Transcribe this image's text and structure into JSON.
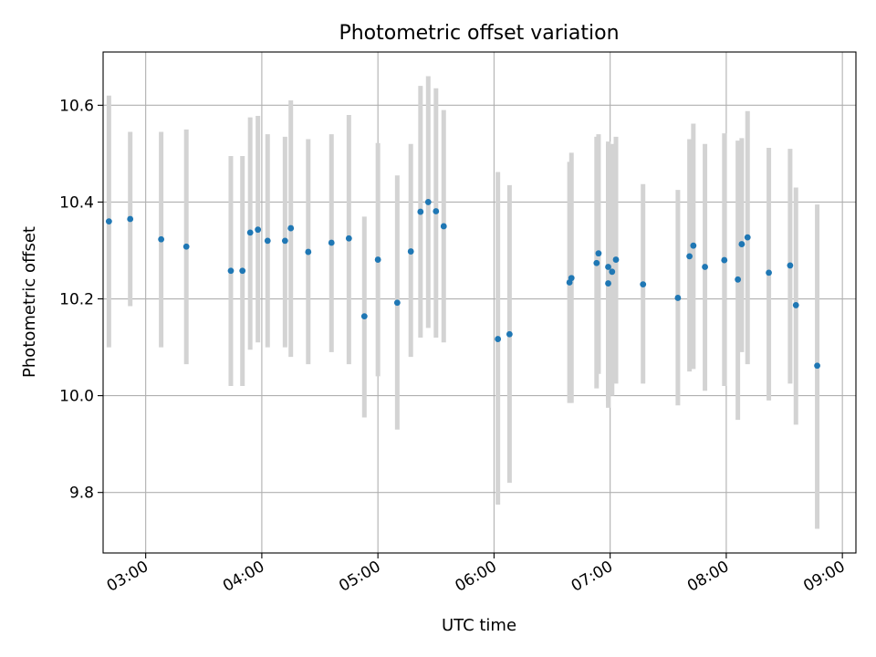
{
  "chart_data": {
    "type": "scatter",
    "title": "Photometric offset variation",
    "xlabel": "UTC time",
    "ylabel": "Photometric offset",
    "xlim": [
      "02:38",
      "09:07"
    ],
    "ylim": [
      9.675,
      10.71
    ],
    "grid": true,
    "x_ticks": [
      "03:00",
      "04:00",
      "05:00",
      "06:00",
      "07:00",
      "08:00",
      "09:00"
    ],
    "y_ticks": [
      "9.8",
      "10.0",
      "10.2",
      "10.4",
      "10.6"
    ],
    "marker_color": "#1f77b4",
    "errorbar_color": "#d3d3d3",
    "series": [
      {
        "x": [
          "02:41",
          "02:52",
          "03:08",
          "03:21",
          "03:44",
          "03:50",
          "03:54",
          "03:58",
          "04:03",
          "04:12",
          "04:15",
          "04:24",
          "04:36",
          "04:45",
          "04:53",
          "05:00",
          "05:10",
          "05:17",
          "05:22",
          "05:26",
          "05:30",
          "05:34",
          "06:02",
          "06:08",
          "06:39",
          "06:40",
          "06:53",
          "06:54",
          "06:59",
          "06:59",
          "07:01",
          "07:03",
          "07:17",
          "07:35",
          "07:41",
          "07:43",
          "07:49",
          "07:59",
          "08:06",
          "08:08",
          "08:11",
          "08:22",
          "08:33",
          "08:36",
          "08:47"
        ],
        "y": [
          10.36,
          10.365,
          10.323,
          10.308,
          10.258,
          10.258,
          10.337,
          10.343,
          10.32,
          10.32,
          10.346,
          10.297,
          10.316,
          10.325,
          10.164,
          10.281,
          10.192,
          10.298,
          10.38,
          10.4,
          10.381,
          10.35,
          10.117,
          10.127,
          10.234,
          10.243,
          10.274,
          10.294,
          10.266,
          10.232,
          10.256,
          10.281,
          10.23,
          10.202,
          10.288,
          10.31,
          10.266,
          10.28,
          10.24,
          10.313,
          10.327,
          10.254,
          10.269,
          10.187,
          10.062
        ],
        "y_low": [
          10.1,
          10.185,
          10.1,
          10.065,
          10.02,
          10.02,
          10.095,
          10.11,
          10.1,
          10.1,
          10.08,
          10.065,
          10.09,
          10.065,
          9.955,
          10.04,
          9.93,
          10.08,
          10.12,
          10.14,
          10.12,
          10.11,
          9.775,
          9.82,
          9.985,
          9.985,
          10.015,
          10.045,
          9.975,
          9.99,
          10.0,
          10.025,
          10.025,
          9.98,
          10.05,
          10.055,
          10.01,
          10.02,
          9.95,
          10.09,
          10.065,
          9.99,
          10.025,
          9.94,
          9.725
        ],
        "y_high": [
          10.62,
          10.545,
          10.545,
          10.55,
          10.495,
          10.495,
          10.575,
          10.578,
          10.54,
          10.535,
          10.61,
          10.53,
          10.54,
          10.58,
          10.37,
          10.522,
          10.455,
          10.52,
          10.64,
          10.66,
          10.635,
          10.59,
          10.462,
          10.435,
          10.483,
          10.502,
          10.535,
          10.54,
          10.525,
          10.52,
          10.52,
          10.535,
          10.437,
          10.425,
          10.53,
          10.562,
          10.52,
          10.542,
          10.527,
          10.532,
          10.588,
          10.512,
          10.51,
          10.43,
          10.395
        ]
      }
    ]
  }
}
